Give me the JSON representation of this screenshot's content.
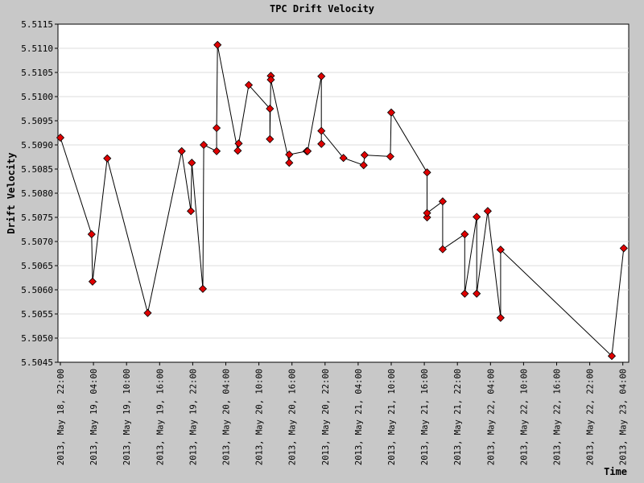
{
  "chart_data": {
    "type": "line",
    "title": "TPC Drift Velocity",
    "xlabel": "Time",
    "ylabel": "Drift Velocity",
    "ylim": [
      5.5045,
      5.5115
    ],
    "xlim": [
      "2013-05-18 22:00",
      "2013-05-23 04:00"
    ],
    "grid": true,
    "y_tick_labels": [
      "5.5045",
      "5.5050",
      "5.5055",
      "5.5060",
      "5.5065",
      "5.5070",
      "5.5075",
      "5.5080",
      "5.5085",
      "5.5090",
      "5.5095",
      "5.5100",
      "5.5105",
      "5.5110",
      "5.5115"
    ],
    "x_tick_labels": [
      "2013, May 18, 22:00",
      "2013, May 19, 04:00",
      "2013, May 19, 10:00",
      "2013, May 19, 16:00",
      "2013, May 19, 22:00",
      "2013, May 20, 04:00",
      "2013, May 20, 10:00",
      "2013, May 20, 16:00",
      "2013, May 20, 22:00",
      "2013, May 21, 04:00",
      "2013, May 21, 10:00",
      "2013, May 21, 16:00",
      "2013, May 21, 22:00",
      "2013, May 22, 04:00",
      "2013, May 22, 10:00",
      "2013, May 22, 16:00",
      "2013, May 22, 22:00",
      "2013, May 23, 04:00"
    ],
    "series": [
      {
        "color": "#e00000",
        "points": [
          {
            "x": "2013-05-18 22:00",
            "y": 5.50915
          },
          {
            "x": "2013-05-19 03:40",
            "y": 5.50715
          },
          {
            "x": "2013-05-19 03:50",
            "y": 5.50617
          },
          {
            "x": "2013-05-19 06:30",
            "y": 5.50872
          },
          {
            "x": "2013-05-19 13:50",
            "y": 5.50552
          },
          {
            "x": "2013-05-19 20:00",
            "y": 5.50887
          },
          {
            "x": "2013-05-19 21:40",
            "y": 5.50763
          },
          {
            "x": "2013-05-19 21:50",
            "y": 5.50863
          },
          {
            "x": "2013-05-19 23:50",
            "y": 5.50602
          },
          {
            "x": "2013-05-20 00:00",
            "y": 5.509
          },
          {
            "x": "2013-05-20 02:20",
            "y": 5.50887
          },
          {
            "x": "2013-05-20 02:20",
            "y": 5.50935
          },
          {
            "x": "2013-05-20 02:30",
            "y": 5.51107
          },
          {
            "x": "2013-05-20 06:10",
            "y": 5.50888
          },
          {
            "x": "2013-05-20 06:20",
            "y": 5.50903
          },
          {
            "x": "2013-05-20 08:10",
            "y": 5.51024
          },
          {
            "x": "2013-05-20 12:00",
            "y": 5.50975
          },
          {
            "x": "2013-05-20 12:00",
            "y": 5.50912
          },
          {
            "x": "2013-05-20 12:10",
            "y": 5.51043
          },
          {
            "x": "2013-05-20 12:10",
            "y": 5.51035
          },
          {
            "x": "2013-05-20 15:30",
            "y": 5.50863
          },
          {
            "x": "2013-05-20 15:30",
            "y": 5.5088
          },
          {
            "x": "2013-05-20 18:40",
            "y": 5.50887
          },
          {
            "x": "2013-05-20 18:50",
            "y": 5.50887
          },
          {
            "x": "2013-05-20 21:20",
            "y": 5.51042
          },
          {
            "x": "2013-05-20 21:20",
            "y": 5.50902
          },
          {
            "x": "2013-05-20 21:20",
            "y": 5.50929
          },
          {
            "x": "2013-05-21 01:20",
            "y": 5.50873
          },
          {
            "x": "2013-05-21 05:00",
            "y": 5.50858
          },
          {
            "x": "2013-05-21 05:10",
            "y": 5.50879
          },
          {
            "x": "2013-05-21 09:50",
            "y": 5.50876
          },
          {
            "x": "2013-05-21 10:00",
            "y": 5.50967
          },
          {
            "x": "2013-05-21 16:30",
            "y": 5.50843
          },
          {
            "x": "2013-05-21 16:30",
            "y": 5.5075
          },
          {
            "x": "2013-05-21 16:30",
            "y": 5.50759
          },
          {
            "x": "2013-05-21 19:20",
            "y": 5.50783
          },
          {
            "x": "2013-05-21 19:20",
            "y": 5.50684
          },
          {
            "x": "2013-05-21 23:20",
            "y": 5.50715
          },
          {
            "x": "2013-05-21 23:20",
            "y": 5.50592
          },
          {
            "x": "2013-05-22 01:30",
            "y": 5.50751
          },
          {
            "x": "2013-05-22 01:30",
            "y": 5.50592
          },
          {
            "x": "2013-05-22 03:30",
            "y": 5.50763
          },
          {
            "x": "2013-05-22 05:50",
            "y": 5.50542
          },
          {
            "x": "2013-05-22 05:50",
            "y": 5.50683
          },
          {
            "x": "2013-05-23 02:00",
            "y": 5.50463
          },
          {
            "x": "2013-05-23 04:10",
            "y": 5.50686
          }
        ]
      }
    ]
  }
}
